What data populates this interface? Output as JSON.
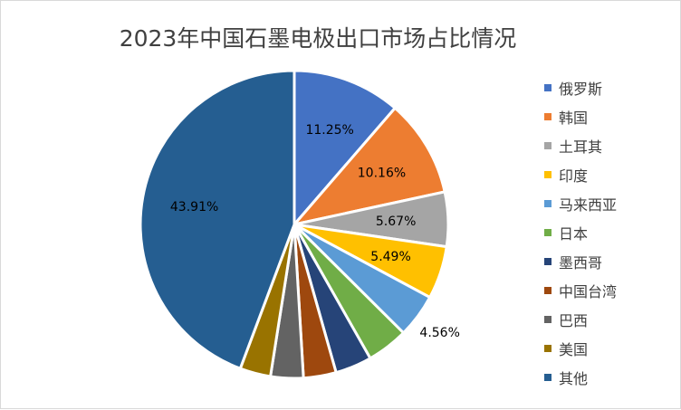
{
  "chart_data": {
    "type": "pie",
    "title": "2023年中国石墨电极出口市场占比情况",
    "start_angle_deg": 0,
    "direction": "clockwise",
    "legend_position": "right",
    "slices": [
      {
        "name": "俄罗斯",
        "value": 11.25,
        "label": "11.25%",
        "color": "#4472c4"
      },
      {
        "name": "韩国",
        "value": 10.16,
        "label": "10.16%",
        "color": "#ed7d31"
      },
      {
        "name": "土耳其",
        "value": 5.67,
        "label": "5.67%",
        "color": "#a5a5a5"
      },
      {
        "name": "印度",
        "value": 5.49,
        "label": "5.49%",
        "color": "#ffc000"
      },
      {
        "name": "马来西亚",
        "value": 4.56,
        "label": "4.56%",
        "color": "#5b9bd5"
      },
      {
        "name": "日本",
        "value": 4.3,
        "label": "",
        "color": "#70ad47"
      },
      {
        "name": "墨西哥",
        "value": 3.8,
        "label": "",
        "color": "#264478"
      },
      {
        "name": "中国台湾",
        "value": 3.4,
        "label": "",
        "color": "#9e480e"
      },
      {
        "name": "巴西",
        "value": 3.4,
        "label": "",
        "color": "#636363"
      },
      {
        "name": "美国",
        "value": 3.2,
        "label": "",
        "color": "#997300"
      },
      {
        "name": "其他",
        "value": 43.91,
        "label": "43.91%",
        "color": "#255e91"
      }
    ]
  }
}
